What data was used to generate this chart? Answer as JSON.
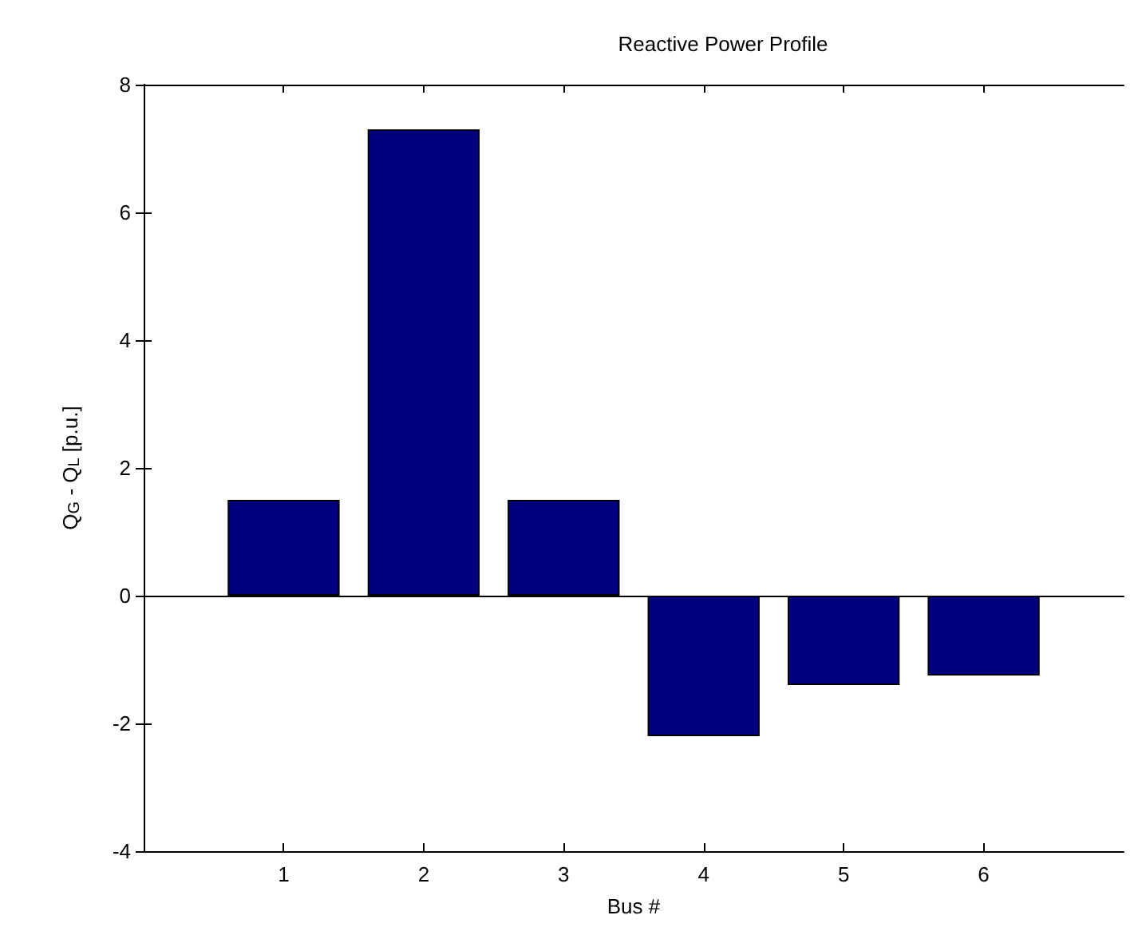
{
  "chart_data": {
    "type": "bar",
    "title": "Reactive Power Profile",
    "xlabel": "Bus #",
    "ylabel": "Q$_{G}$ - Q$_{L}$ [p.u.]",
    "x": [
      1,
      2,
      3,
      4,
      5,
      6
    ],
    "values": [
      1.5,
      7.3,
      1.5,
      -2.2,
      -1.4,
      -1.25
    ],
    "color": "#000080",
    "xlim": [
      0,
      7
    ],
    "xticks": [
      1,
      2,
      3,
      4,
      5,
      6
    ],
    "ylim": [
      -4,
      8
    ],
    "yticks": [
      -4,
      -2,
      0,
      2,
      4,
      6,
      8
    ]
  }
}
